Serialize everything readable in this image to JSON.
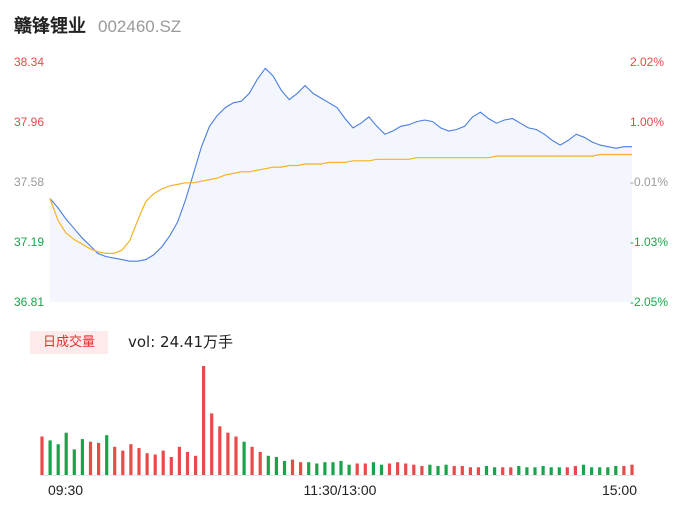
{
  "stock": {
    "name": "赣锋锂业",
    "code": "002460.SZ"
  },
  "volume_panel": {
    "badge": "日成交量",
    "vol_label": "vol: 24.41万手"
  },
  "colors": {
    "up": "#e84a4a",
    "down": "#1aa34a",
    "neutral": "#999999",
    "price_line": "#4a7ee0",
    "avg_line": "#f5b325",
    "area_fill": "#f3f6fd"
  },
  "chart_data": [
    {
      "type": "line",
      "series": [
        {
          "values": [
            37.47,
            37.41,
            37.34,
            37.28,
            37.22,
            37.17,
            37.12,
            37.1,
            37.09,
            37.08,
            37.07,
            37.07,
            37.08,
            37.11,
            37.16,
            37.23,
            37.32,
            37.46,
            37.63,
            37.8,
            37.93,
            38.0,
            38.05,
            38.08,
            38.09,
            38.14,
            38.23,
            38.3,
            38.25,
            38.16,
            38.1,
            38.14,
            38.19,
            38.14,
            38.11,
            38.08,
            38.05,
            37.98,
            37.92,
            37.95,
            37.99,
            37.93,
            37.88,
            37.9,
            37.93,
            37.94,
            37.96,
            37.97,
            37.96,
            37.92,
            37.9,
            37.91,
            37.93,
            37.99,
            38.02,
            37.98,
            37.95,
            37.97,
            37.98,
            37.95,
            37.92,
            37.91,
            37.88,
            37.84,
            37.81,
            37.84,
            37.88,
            37.86,
            37.83,
            37.81,
            37.8,
            37.79,
            37.8,
            37.8
          ]
        },
        {
          "values": [
            37.47,
            37.33,
            37.25,
            37.21,
            37.18,
            37.15,
            37.13,
            37.12,
            37.12,
            37.14,
            37.2,
            37.33,
            37.45,
            37.5,
            37.53,
            37.55,
            37.56,
            37.57,
            37.57,
            37.58,
            37.59,
            37.6,
            37.62,
            37.63,
            37.64,
            37.64,
            37.65,
            37.66,
            37.67,
            37.67,
            37.68,
            37.68,
            37.69,
            37.69,
            37.69,
            37.7,
            37.7,
            37.7,
            37.71,
            37.71,
            37.71,
            37.72,
            37.72,
            37.72,
            37.72,
            37.72,
            37.73,
            37.73,
            37.73,
            37.73,
            37.73,
            37.73,
            37.73,
            37.73,
            37.73,
            37.73,
            37.74,
            37.74,
            37.74,
            37.74,
            37.74,
            37.74,
            37.74,
            37.74,
            37.74,
            37.74,
            37.74,
            37.74,
            37.74,
            37.75,
            37.75,
            37.75,
            37.75,
            37.75
          ]
        }
      ],
      "ylim": [
        36.81,
        38.34
      ],
      "left_ticks": [
        "38.34",
        "37.96",
        "37.58",
        "37.19",
        "36.81"
      ],
      "right_ticks": [
        "2.02%",
        "1.00%",
        "-0.01%",
        "-1.03%",
        "-2.05%"
      ]
    },
    {
      "type": "bar",
      "values": [
        30,
        27,
        24,
        33,
        20,
        28,
        26,
        25,
        31,
        22,
        19,
        24,
        21,
        17,
        16,
        19,
        14,
        22,
        18,
        15,
        85,
        48,
        38,
        33,
        30,
        26,
        22,
        18,
        15,
        14,
        11,
        12,
        10,
        10,
        9,
        10,
        10,
        11,
        8,
        9,
        9,
        10,
        8,
        9,
        10,
        9,
        8,
        7,
        8,
        7,
        8,
        7,
        7,
        6,
        6,
        7,
        6,
        6,
        6,
        7,
        6,
        6,
        7,
        6,
        6,
        6,
        7,
        8,
        6,
        6,
        6,
        7,
        7,
        8
      ],
      "up": [
        1,
        0,
        0,
        0,
        0,
        0,
        1,
        1,
        0,
        1,
        1,
        1,
        1,
        1,
        1,
        1,
        1,
        1,
        1,
        1,
        1,
        1,
        1,
        1,
        1,
        0,
        1,
        1,
        0,
        0,
        0,
        1,
        1,
        0,
        0,
        0,
        0,
        0,
        0,
        1,
        1,
        0,
        0,
        1,
        1,
        1,
        1,
        1,
        0,
        0,
        0,
        1,
        1,
        1,
        1,
        0,
        0,
        1,
        1,
        0,
        0,
        0,
        0,
        0,
        0,
        1,
        1,
        0,
        0,
        0,
        0,
        0,
        1,
        1
      ],
      "x_ticks": [
        "09:30",
        "11:30/13:00",
        "15:00"
      ]
    }
  ]
}
